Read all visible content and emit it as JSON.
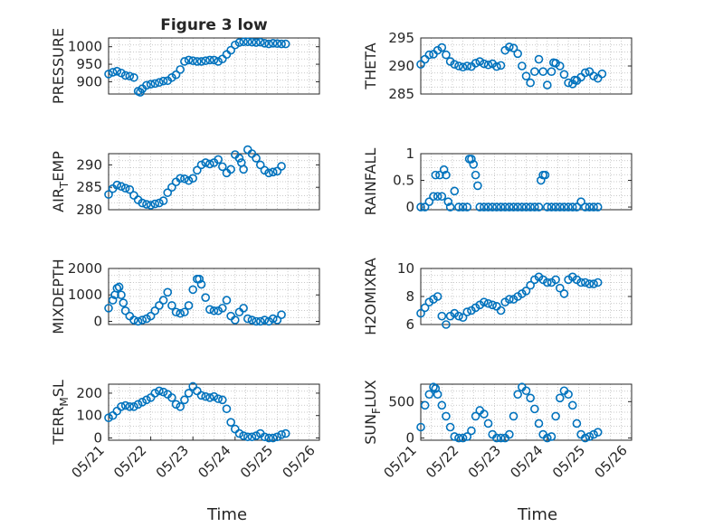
{
  "figure": {
    "xlabel": "Time"
  },
  "chart_data": [
    {
      "type": "scatter",
      "title": "Figure 3 low",
      "ylabel_main": "PRESSURE",
      "ylabel_sub": "",
      "ylim": [
        865,
        1025
      ],
      "yticks": [
        900,
        950,
        1000
      ],
      "ytick_labels": [
        "900",
        "950",
        "1000"
      ],
      "xlim": [
        0,
        5
      ],
      "xticks": [],
      "xtick_labels": [],
      "color": "#0072BD",
      "series": [
        {
          "x": [
            0.0,
            0.1,
            0.2,
            0.3,
            0.4,
            0.5,
            0.6,
            0.7,
            0.75,
            0.8,
            0.9,
            1.0,
            1.1,
            1.2,
            1.3,
            1.4,
            1.5,
            1.6,
            1.7,
            1.8,
            1.9,
            2.0,
            2.1,
            2.2,
            2.3,
            2.4,
            2.5,
            2.6,
            2.7,
            2.8,
            2.9,
            3.0,
            3.1,
            3.2,
            3.3,
            3.4,
            3.5,
            3.6,
            3.7,
            3.8,
            3.9,
            4.0,
            4.1,
            4.2
          ],
          "y": [
            922,
            927,
            930,
            925,
            918,
            916,
            912,
            873,
            870,
            880,
            890,
            893,
            895,
            898,
            902,
            903,
            912,
            920,
            935,
            958,
            962,
            960,
            958,
            958,
            960,
            962,
            962,
            958,
            965,
            978,
            990,
            1005,
            1012,
            1014,
            1014,
            1013,
            1012,
            1013,
            1010,
            1008,
            1010,
            1009,
            1008,
            1008
          ]
        }
      ]
    },
    {
      "type": "scatter",
      "title": "",
      "ylabel_main": "THETA",
      "ylabel_sub": "",
      "ylim": [
        285,
        295
      ],
      "yticks": [
        285,
        290,
        295
      ],
      "ytick_labels": [
        "285",
        "290",
        "295"
      ],
      "xlim": [
        0,
        5
      ],
      "xticks": [],
      "xtick_labels": [],
      "color": "#0072BD",
      "series": [
        {
          "x": [
            0.0,
            0.1,
            0.2,
            0.3,
            0.4,
            0.5,
            0.6,
            0.7,
            0.8,
            0.9,
            1.0,
            1.1,
            1.2,
            1.3,
            1.4,
            1.5,
            1.6,
            1.7,
            1.8,
            1.9,
            2.0,
            2.1,
            2.2,
            2.3,
            2.4,
            2.5,
            2.6,
            2.7,
            2.8,
            2.9,
            3.0,
            3.1,
            3.15,
            3.2,
            3.3,
            3.4,
            3.5,
            3.6,
            3.65,
            3.7,
            3.8,
            3.9,
            4.0,
            4.1,
            4.2,
            4.3
          ],
          "y": [
            290.3,
            291.2,
            292,
            292.1,
            292.8,
            293.3,
            292,
            290.8,
            290.3,
            290,
            289.8,
            290,
            289.9,
            290.5,
            290.8,
            290.4,
            290.2,
            290.4,
            289.9,
            290.1,
            292.8,
            293.4,
            293.2,
            292.2,
            290,
            288.2,
            287,
            289,
            291.2,
            289,
            286.6,
            289,
            290.6,
            290.5,
            290,
            288.5,
            287,
            286.8,
            287.5,
            287.4,
            288,
            288.8,
            289,
            288.2,
            287.8,
            288.6
          ]
        }
      ]
    },
    {
      "type": "scatter",
      "title": "",
      "ylabel_main": "AIR",
      "ylabel_sub": "T",
      "ylabel_rest": "EMP",
      "ylim": [
        280,
        292.5
      ],
      "yticks": [
        280,
        285,
        290
      ],
      "ytick_labels": [
        "280",
        "285",
        "290"
      ],
      "xlim": [
        0,
        5
      ],
      "xticks": [],
      "xtick_labels": [],
      "color": "#0072BD",
      "series": [
        {
          "x": [
            0.0,
            0.1,
            0.2,
            0.3,
            0.4,
            0.5,
            0.6,
            0.7,
            0.8,
            0.9,
            1.0,
            1.1,
            1.2,
            1.3,
            1.4,
            1.5,
            1.6,
            1.7,
            1.8,
            1.9,
            2.0,
            2.1,
            2.2,
            2.3,
            2.4,
            2.5,
            2.6,
            2.7,
            2.8,
            2.9,
            3.0,
            3.1,
            3.15,
            3.2,
            3.3,
            3.4,
            3.5,
            3.6,
            3.7,
            3.8,
            3.9,
            4.0,
            4.1
          ],
          "y": [
            283.4,
            284.7,
            285.5,
            285.2,
            284.8,
            284.5,
            283.2,
            282.2,
            281.5,
            281.2,
            281,
            281.3,
            281.5,
            282,
            283.8,
            285,
            286.2,
            287,
            286.9,
            286.5,
            287,
            288.8,
            290,
            290.5,
            290.2,
            290.5,
            291.2,
            289.6,
            288.2,
            289,
            292.3,
            291.5,
            290.5,
            289,
            293.4,
            292.5,
            291.5,
            290,
            288.8,
            288.2,
            288.4,
            288.6,
            289.7
          ]
        }
      ]
    },
    {
      "type": "scatter",
      "title": "",
      "ylabel_main": "RAINFALL",
      "ylabel_sub": "",
      "ylim": [
        -0.05,
        1.0
      ],
      "yticks": [
        0,
        0.5,
        1
      ],
      "ytick_labels": [
        "0",
        "0.5",
        "1"
      ],
      "xlim": [
        0,
        5
      ],
      "xticks": [],
      "xtick_labels": [],
      "color": "#0072BD",
      "series": [
        {
          "x": [
            0.0,
            0.1,
            0.2,
            0.3,
            0.35,
            0.4,
            0.45,
            0.5,
            0.55,
            0.6,
            0.65,
            0.7,
            0.8,
            0.9,
            1.0,
            1.1,
            1.15,
            1.2,
            1.25,
            1.3,
            1.35,
            1.4,
            1.5,
            1.6,
            1.7,
            1.8,
            1.9,
            2.0,
            2.1,
            2.2,
            2.3,
            2.4,
            2.5,
            2.6,
            2.7,
            2.8,
            2.85,
            2.9,
            2.95,
            3.0,
            3.1,
            3.2,
            3.3,
            3.4,
            3.5,
            3.6,
            3.7,
            3.8,
            3.9,
            4.0,
            4.1,
            4.2
          ],
          "y": [
            0,
            0,
            0.1,
            0.2,
            0.6,
            0.2,
            0.6,
            0.2,
            0.7,
            0.6,
            0.1,
            0,
            0.3,
            0,
            0,
            0,
            0.9,
            0.9,
            0.8,
            0.6,
            0.4,
            0,
            0,
            0,
            0,
            0,
            0,
            0,
            0,
            0,
            0,
            0,
            0,
            0,
            0,
            0,
            0.5,
            0.6,
            0.6,
            0,
            0,
            0,
            0,
            0,
            0,
            0,
            0,
            0.1,
            0,
            0,
            0,
            0
          ]
        }
      ]
    },
    {
      "type": "scatter",
      "title": "",
      "ylabel_main": "MIXDEPTH",
      "ylabel_sub": "",
      "ylim": [
        -120,
        2000
      ],
      "yticks": [
        0,
        1000,
        2000
      ],
      "ytick_labels": [
        "0",
        "1000",
        "2000"
      ],
      "xlim": [
        0,
        5
      ],
      "xticks": [],
      "xtick_labels": [],
      "color": "#0072BD",
      "series": [
        {
          "x": [
            0.0,
            0.1,
            0.15,
            0.2,
            0.25,
            0.3,
            0.35,
            0.4,
            0.5,
            0.6,
            0.7,
            0.8,
            0.9,
            1.0,
            1.1,
            1.2,
            1.3,
            1.4,
            1.5,
            1.6,
            1.7,
            1.8,
            1.9,
            2.0,
            2.1,
            2.15,
            2.2,
            2.3,
            2.4,
            2.5,
            2.6,
            2.7,
            2.8,
            2.9,
            3.0,
            3.1,
            3.2,
            3.3,
            3.4,
            3.5,
            3.6,
            3.7,
            3.8,
            3.9,
            4.0,
            4.1
          ],
          "y": [
            500,
            800,
            1000,
            1250,
            1300,
            1000,
            700,
            400,
            200,
            50,
            0,
            50,
            100,
            200,
            400,
            600,
            800,
            1100,
            600,
            350,
            300,
            350,
            600,
            1200,
            1600,
            1600,
            1400,
            900,
            450,
            400,
            400,
            500,
            800,
            200,
            50,
            350,
            500,
            100,
            50,
            0,
            0,
            50,
            0,
            100,
            50,
            250
          ]
        }
      ]
    },
    {
      "type": "scatter",
      "title": "",
      "ylabel_main": "H2OMIXRA",
      "ylabel_sub": "",
      "ylim": [
        6,
        10
      ],
      "yticks": [
        6,
        8,
        10
      ],
      "ytick_labels": [
        "6",
        "8",
        "10"
      ],
      "xlim": [
        0,
        5
      ],
      "xticks": [],
      "xtick_labels": [],
      "color": "#0072BD",
      "series": [
        {
          "x": [
            0.0,
            0.1,
            0.2,
            0.3,
            0.4,
            0.5,
            0.6,
            0.7,
            0.8,
            0.9,
            1.0,
            1.1,
            1.2,
            1.3,
            1.4,
            1.5,
            1.6,
            1.7,
            1.8,
            1.9,
            2.0,
            2.1,
            2.2,
            2.3,
            2.4,
            2.5,
            2.6,
            2.7,
            2.8,
            2.9,
            3.0,
            3.1,
            3.2,
            3.3,
            3.4,
            3.5,
            3.6,
            3.7,
            3.8,
            3.9,
            4.0,
            4.1,
            4.2
          ],
          "y": [
            6.8,
            7.2,
            7.6,
            7.8,
            8.0,
            6.6,
            6.0,
            6.6,
            6.8,
            6.6,
            6.5,
            6.9,
            7.0,
            7.2,
            7.4,
            7.6,
            7.5,
            7.4,
            7.3,
            7.0,
            7.6,
            7.8,
            7.8,
            8.0,
            8.2,
            8.4,
            8.8,
            9.2,
            9.4,
            9.2,
            9.0,
            9.0,
            9.2,
            8.6,
            8.2,
            9.2,
            9.4,
            9.2,
            9.0,
            9.0,
            8.9,
            8.9,
            9.0
          ]
        }
      ]
    },
    {
      "type": "scatter",
      "title": "",
      "ylabel_main": "TERR",
      "ylabel_sub": "M",
      "ylabel_rest": "SL",
      "ylim": [
        -10,
        240
      ],
      "yticks": [
        0,
        100,
        200
      ],
      "ytick_labels": [
        "0",
        "100",
        "200"
      ],
      "xlim": [
        0,
        5
      ],
      "xticks": [
        0,
        1,
        2,
        3,
        4,
        5
      ],
      "xtick_labels": [
        "05/21",
        "05/22",
        "05/23",
        "05/24",
        "05/25",
        "05/26"
      ],
      "color": "#0072BD",
      "series": [
        {
          "x": [
            0.0,
            0.1,
            0.2,
            0.3,
            0.4,
            0.5,
            0.6,
            0.7,
            0.8,
            0.9,
            1.0,
            1.1,
            1.2,
            1.3,
            1.4,
            1.5,
            1.6,
            1.7,
            1.8,
            1.9,
            2.0,
            2.1,
            2.2,
            2.3,
            2.4,
            2.5,
            2.6,
            2.7,
            2.8,
            2.9,
            3.0,
            3.1,
            3.2,
            3.3,
            3.4,
            3.5,
            3.6,
            3.7,
            3.8,
            3.9,
            4.0,
            4.1,
            4.2
          ],
          "y": [
            90,
            100,
            120,
            140,
            145,
            140,
            140,
            150,
            160,
            170,
            180,
            200,
            210,
            205,
            195,
            180,
            150,
            140,
            170,
            200,
            230,
            210,
            190,
            185,
            180,
            185,
            175,
            170,
            130,
            70,
            40,
            20,
            10,
            5,
            5,
            10,
            20,
            5,
            0,
            0,
            5,
            15,
            20
          ]
        }
      ]
    },
    {
      "type": "scatter",
      "title": "",
      "ylabel_main": "SUN",
      "ylabel_sub": "F",
      "ylabel_rest": "LUX",
      "ylim": [
        -30,
        740
      ],
      "yticks": [
        0,
        500
      ],
      "ytick_labels": [
        "0",
        "500"
      ],
      "xlim": [
        0,
        5
      ],
      "xticks": [
        0,
        1,
        2,
        3,
        4,
        5
      ],
      "xtick_labels": [
        "05/21",
        "05/22",
        "05/23",
        "05/24",
        "05/25",
        "05/26"
      ],
      "color": "#0072BD",
      "series": [
        {
          "x": [
            0.0,
            0.1,
            0.2,
            0.3,
            0.35,
            0.4,
            0.5,
            0.6,
            0.7,
            0.8,
            0.9,
            1.0,
            1.1,
            1.2,
            1.3,
            1.4,
            1.5,
            1.6,
            1.7,
            1.8,
            1.9,
            2.0,
            2.1,
            2.2,
            2.3,
            2.4,
            2.5,
            2.6,
            2.7,
            2.8,
            2.9,
            3.0,
            3.1,
            3.2,
            3.3,
            3.4,
            3.5,
            3.6,
            3.7,
            3.8,
            3.9,
            4.0,
            4.1,
            4.2
          ],
          "y": [
            150,
            450,
            600,
            700,
            680,
            600,
            450,
            300,
            150,
            20,
            0,
            0,
            20,
            100,
            300,
            380,
            330,
            200,
            50,
            0,
            0,
            0,
            50,
            300,
            600,
            700,
            650,
            550,
            400,
            200,
            50,
            0,
            20,
            300,
            550,
            650,
            600,
            450,
            200,
            50,
            0,
            20,
            50,
            80
          ]
        }
      ]
    }
  ]
}
